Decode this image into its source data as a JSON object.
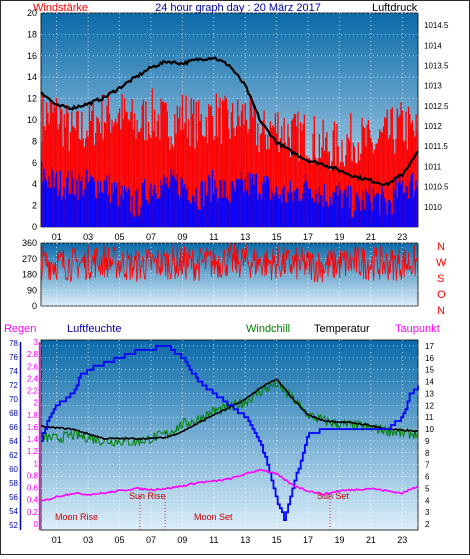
{
  "colors": {
    "wind": "#ff0000",
    "pressure": "#000000",
    "gust_bar": "#0000ff",
    "humidity": "#0000ff",
    "windchill": "#008000",
    "temperature": "#000000",
    "dewpoint": "#ff00ff",
    "rain_axis": "#ff00ff",
    "hum_axis": "#0000aa",
    "sky_top": "#0b6aa8",
    "sky_bottom": "#dceefa",
    "direction_letters": "#ff0000"
  },
  "header": {
    "left_label": "Windstärke",
    "title": "24 hour graph day : 20 März 2017",
    "right_label": "Luftdruck"
  },
  "direction_labels": [
    "N",
    "W",
    "S",
    "O",
    "N"
  ],
  "bottom_labels": {
    "rain": "Regen",
    "humidity": "Luftfeuchte",
    "windchill": "Windchill",
    "temperature": "Temperatur",
    "dewpoint": "Taupunkt"
  },
  "events": {
    "sun_rise": "Sun Rise",
    "sun_set": "Sun Set",
    "moon_rise": "Moon Rise",
    "moon_set": "Moon Set"
  },
  "x_ticks": [
    "01",
    "03",
    "05",
    "07",
    "09",
    "11",
    "13",
    "15",
    "17",
    "19",
    "21",
    "23"
  ],
  "chart_data": [
    {
      "type": "line",
      "title": "24 hour graph day : 20 März 2017",
      "panel": "wind-pressure",
      "x_range_hours": [
        0,
        24
      ],
      "y_left_label": "Windstärke",
      "y_left_ticks": [
        0,
        2,
        4,
        6,
        8,
        10,
        12,
        14,
        16,
        18,
        20
      ],
      "y_left_range": [
        0,
        20
      ],
      "y_right_label": "Luftdruck",
      "y_right_ticks": [
        1010,
        1010.5,
        1011,
        1011.5,
        1012,
        1012.5,
        1013,
        1013.5,
        1014,
        1014.5
      ],
      "y_right_range": [
        1009.5,
        1014.8
      ],
      "series": [
        {
          "name": "Windstärke",
          "hours": [
            0,
            1,
            2,
            3,
            4,
            5,
            6,
            7,
            8,
            9,
            10,
            11,
            12,
            13,
            14,
            15,
            16,
            17,
            18,
            19,
            20,
            21,
            22,
            23,
            24
          ],
          "values": [
            10,
            10,
            8,
            9,
            10,
            10,
            9,
            10,
            9,
            10,
            9,
            10,
            9,
            10,
            8,
            9,
            8,
            8,
            7,
            7,
            8,
            7,
            8,
            9,
            8
          ]
        },
        {
          "name": "Luftdruck",
          "hours": [
            0,
            1,
            2,
            3,
            4,
            5,
            6,
            7,
            8,
            9,
            10,
            11,
            12,
            13,
            14,
            15,
            16,
            17,
            18,
            19,
            20,
            21,
            22,
            23,
            24
          ],
          "values": [
            1012.85,
            1012.5,
            1012.45,
            1012.55,
            1012.7,
            1012.95,
            1013.2,
            1013.45,
            1013.6,
            1013.55,
            1013.65,
            1013.7,
            1013.5,
            1013.0,
            1012.1,
            1011.6,
            1011.35,
            1011.15,
            1011.05,
            1010.9,
            1010.75,
            1010.65,
            1010.55,
            1010.8,
            1011.35
          ]
        },
        {
          "name": "Gust",
          "hours": [
            0,
            1,
            2,
            3,
            4,
            5,
            6,
            7,
            8,
            9,
            10,
            11,
            12,
            13,
            14,
            15,
            16,
            17,
            18,
            19,
            20,
            21,
            22,
            23,
            24
          ],
          "values": [
            5,
            4,
            4,
            4,
            4,
            3,
            2,
            4,
            4,
            4,
            3,
            4,
            3,
            4,
            4,
            3,
            3,
            4,
            3,
            3,
            2,
            3,
            2,
            4,
            4
          ]
        }
      ]
    },
    {
      "type": "line",
      "panel": "wind-direction",
      "x_range_hours": [
        0,
        24
      ],
      "y_ticks": [
        0,
        90,
        180,
        270,
        360
      ],
      "y_range": [
        0,
        360
      ],
      "series": [
        {
          "name": "Windrichtung",
          "hours": [
            0,
            2,
            4,
            6,
            8,
            10,
            12,
            14,
            16,
            18,
            20,
            22,
            24
          ],
          "values": [
            250,
            240,
            260,
            230,
            250,
            240,
            260,
            250,
            240,
            230,
            250,
            240,
            250
          ]
        }
      ]
    },
    {
      "type": "line",
      "panel": "temperature-humidity",
      "x_range_hours": [
        0,
        24
      ],
      "rain_axis_ticks": [
        0,
        0.2,
        0.4,
        0.6,
        0.8,
        1,
        1.2,
        1.4,
        1.6,
        1.8,
        2,
        2.2,
        2.4,
        2.6,
        2.8,
        3
      ],
      "humidity_axis_ticks": [
        52,
        54,
        56,
        58,
        60,
        62,
        64,
        66,
        68,
        70,
        72,
        74,
        76,
        78
      ],
      "temperature_axis_ticks": [
        2,
        3,
        4,
        5,
        6,
        7,
        8,
        9,
        10,
        11,
        12,
        13,
        14,
        15,
        16,
        17
      ],
      "temperature_range": [
        1.5,
        17.5
      ],
      "series": [
        {
          "name": "Luftfeuchte",
          "hours": [
            0,
            0.5,
            1,
            1.5,
            2,
            2.5,
            3,
            4,
            5,
            6,
            7,
            7.5,
            8,
            8.5,
            9,
            10,
            11,
            12,
            13,
            14,
            15,
            15.5,
            16,
            17,
            18,
            19,
            20,
            21,
            22,
            23,
            23.5,
            24
          ],
          "values": [
            9,
            11,
            12,
            12.5,
            13,
            14.5,
            15,
            15.5,
            16,
            16.5,
            16.6,
            17,
            17,
            16.5,
            16,
            14,
            13,
            12,
            11,
            8.8,
            4,
            2.3,
            5,
            9.5,
            10,
            10,
            10,
            10,
            10,
            11,
            13,
            13.5
          ]
        },
        {
          "name": "Windchill",
          "hours": [
            0,
            1,
            2,
            3,
            4,
            5,
            6,
            7,
            8,
            9,
            10,
            11,
            12,
            13,
            14,
            15,
            16,
            17,
            18,
            19,
            20,
            21,
            22,
            23,
            24
          ],
          "values": [
            9.3,
            9.2,
            9.5,
            9.3,
            9.0,
            9.0,
            8.9,
            9.2,
            9.6,
            10.4,
            10.8,
            11.5,
            11.8,
            12.3,
            13.2,
            13.8,
            12.6,
            11.2,
            10.7,
            10.4,
            10.3,
            10.1,
            9.9,
            9.6,
            9.6
          ]
        },
        {
          "name": "Temperatur",
          "hours": [
            0,
            1,
            2,
            3,
            4,
            5,
            6,
            7,
            8,
            9,
            10,
            11,
            12,
            13,
            14,
            15,
            16,
            17,
            18,
            19,
            20,
            21,
            22,
            23,
            24
          ],
          "values": [
            10.2,
            10.1,
            10.0,
            9.6,
            9.2,
            9.2,
            9.2,
            9.2,
            9.3,
            9.8,
            10.5,
            11.2,
            11.8,
            12.5,
            13.5,
            14.2,
            12.6,
            11.2,
            10.7,
            10.6,
            10.5,
            10.3,
            10.0,
            9.9,
            9.8
          ]
        },
        {
          "name": "Taupunkt",
          "hours": [
            0,
            1,
            2,
            3,
            4,
            5,
            6,
            7,
            8,
            9,
            10,
            11,
            12,
            13,
            14,
            15,
            16,
            17,
            18,
            19,
            20,
            21,
            22,
            23,
            24
          ],
          "values": [
            3.9,
            4.3,
            4.6,
            4.5,
            4.6,
            4.8,
            5.0,
            4.9,
            5.0,
            5.2,
            5.5,
            5.6,
            5.8,
            6.2,
            6.6,
            6.2,
            5.3,
            4.8,
            4.5,
            4.8,
            4.9,
            5.0,
            4.8,
            4.6,
            5.2
          ]
        }
      ]
    }
  ]
}
